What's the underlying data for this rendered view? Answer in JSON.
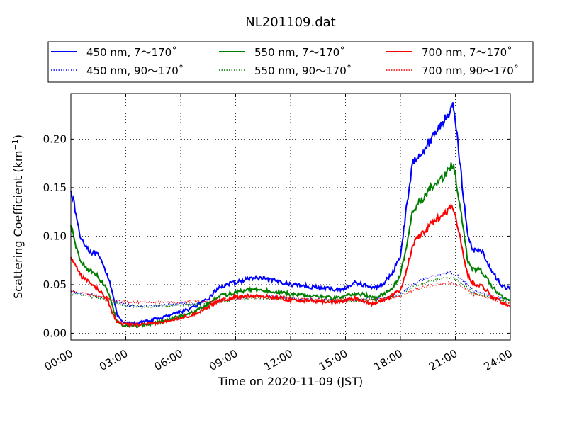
{
  "chart_data": {
    "type": "line",
    "title": "NL201109.dat",
    "xlabel": "Time on 2020-11-09 (JST)",
    "ylabel_main": "Scattering Coefficient (km",
    "ylabel_sup": "−1",
    "ylabel_end": ")",
    "xlim": [
      "00:00",
      "24:00"
    ],
    "ylim": [
      -0.007,
      0.247
    ],
    "x_ticks": [
      "00:00",
      "03:00",
      "06:00",
      "09:00",
      "12:00",
      "15:00",
      "18:00",
      "21:00",
      "24:00"
    ],
    "y_ticks": [
      "0.00",
      "0.05",
      "0.10",
      "0.15",
      "0.20"
    ],
    "y_tick_values": [
      0.0,
      0.05,
      0.1,
      0.15,
      0.2
    ],
    "grid": true,
    "legend_position": "top",
    "series": [
      {
        "name": "450 nm, 7～170˚",
        "color": "#0000ff",
        "style": "solid",
        "x": [
          "00:00",
          "00:30",
          "01:00",
          "01:30",
          "02:00",
          "02:15",
          "02:30",
          "02:45",
          "03:00",
          "03:30",
          "04:00",
          "04:30",
          "05:00",
          "05:30",
          "06:00",
          "06:30",
          "07:00",
          "07:30",
          "08:00",
          "08:30",
          "09:00",
          "09:30",
          "10:00",
          "10:30",
          "11:00",
          "11:30",
          "12:00",
          "12:30",
          "13:00",
          "13:30",
          "14:00",
          "14:30",
          "15:00",
          "15:30",
          "16:00",
          "16:30",
          "17:00",
          "17:30",
          "18:00",
          "18:20",
          "18:40",
          "19:00",
          "19:20",
          "19:40",
          "20:00",
          "20:20",
          "20:40",
          "20:50",
          "21:00",
          "21:20",
          "21:40",
          "22:00",
          "22:20",
          "22:40",
          "23:00",
          "23:30",
          "24:00"
        ],
        "y": [
          0.15,
          0.1,
          0.085,
          0.08,
          0.06,
          0.045,
          0.02,
          0.012,
          0.01,
          0.01,
          0.012,
          0.014,
          0.016,
          0.02,
          0.022,
          0.025,
          0.03,
          0.035,
          0.046,
          0.05,
          0.052,
          0.055,
          0.057,
          0.056,
          0.054,
          0.053,
          0.05,
          0.05,
          0.048,
          0.047,
          0.046,
          0.045,
          0.046,
          0.052,
          0.05,
          0.046,
          0.05,
          0.06,
          0.08,
          0.13,
          0.175,
          0.185,
          0.19,
          0.2,
          0.21,
          0.218,
          0.228,
          0.235,
          0.222,
          0.16,
          0.1,
          0.085,
          0.087,
          0.077,
          0.063,
          0.05,
          0.045
        ]
      },
      {
        "name": "450 nm, 90～170˚",
        "color": "#0000ff",
        "style": "dotted",
        "x": [
          "00:00",
          "01:00",
          "02:00",
          "02:30",
          "03:00",
          "04:00",
          "05:00",
          "06:00",
          "07:00",
          "08:00",
          "09:00",
          "10:00",
          "11:00",
          "12:00",
          "13:00",
          "14:00",
          "15:00",
          "16:00",
          "17:00",
          "18:00",
          "18:40",
          "19:20",
          "20:00",
          "20:40",
          "21:00",
          "21:40",
          "22:00",
          "22:40",
          "23:00",
          "24:00"
        ],
        "y": [
          0.043,
          0.04,
          0.036,
          0.032,
          0.029,
          0.028,
          0.029,
          0.03,
          0.031,
          0.033,
          0.036,
          0.038,
          0.038,
          0.036,
          0.035,
          0.034,
          0.034,
          0.035,
          0.036,
          0.04,
          0.05,
          0.056,
          0.06,
          0.063,
          0.061,
          0.05,
          0.044,
          0.04,
          0.038,
          0.033
        ]
      },
      {
        "name": "550 nm, 7～170˚",
        "color": "#008000",
        "style": "solid",
        "x": [
          "00:00",
          "00:30",
          "01:00",
          "01:30",
          "02:00",
          "02:15",
          "02:30",
          "02:45",
          "03:00",
          "03:30",
          "04:00",
          "04:30",
          "05:00",
          "05:30",
          "06:00",
          "06:30",
          "07:00",
          "07:30",
          "08:00",
          "08:30",
          "09:00",
          "09:30",
          "10:00",
          "10:30",
          "11:00",
          "11:30",
          "12:00",
          "12:30",
          "13:00",
          "13:30",
          "14:00",
          "14:30",
          "15:00",
          "15:30",
          "16:00",
          "16:30",
          "17:00",
          "17:30",
          "18:00",
          "18:20",
          "18:40",
          "19:00",
          "19:20",
          "19:40",
          "20:00",
          "20:20",
          "20:40",
          "20:50",
          "21:00",
          "21:20",
          "21:40",
          "22:00",
          "22:20",
          "22:40",
          "23:00",
          "23:30",
          "24:00"
        ],
        "y": [
          0.11,
          0.075,
          0.065,
          0.058,
          0.045,
          0.03,
          0.012,
          0.008,
          0.008,
          0.007,
          0.008,
          0.01,
          0.012,
          0.015,
          0.018,
          0.02,
          0.025,
          0.03,
          0.038,
          0.04,
          0.042,
          0.044,
          0.045,
          0.044,
          0.043,
          0.042,
          0.04,
          0.04,
          0.039,
          0.038,
          0.037,
          0.036,
          0.038,
          0.04,
          0.04,
          0.036,
          0.04,
          0.045,
          0.06,
          0.09,
          0.125,
          0.135,
          0.14,
          0.15,
          0.155,
          0.16,
          0.168,
          0.175,
          0.163,
          0.12,
          0.075,
          0.065,
          0.066,
          0.058,
          0.048,
          0.038,
          0.033
        ]
      },
      {
        "name": "550 nm, 90～170˚",
        "color": "#008000",
        "style": "dotted",
        "x": [
          "00:00",
          "01:00",
          "02:00",
          "02:30",
          "03:00",
          "04:00",
          "05:00",
          "06:00",
          "07:00",
          "08:00",
          "09:00",
          "10:00",
          "11:00",
          "12:00",
          "13:00",
          "14:00",
          "15:00",
          "16:00",
          "17:00",
          "18:00",
          "18:40",
          "19:20",
          "20:00",
          "20:40",
          "21:00",
          "21:40",
          "22:00",
          "22:40",
          "23:00",
          "24:00"
        ],
        "y": [
          0.041,
          0.038,
          0.035,
          0.031,
          0.028,
          0.027,
          0.028,
          0.029,
          0.03,
          0.032,
          0.035,
          0.036,
          0.036,
          0.035,
          0.034,
          0.033,
          0.033,
          0.034,
          0.035,
          0.039,
          0.047,
          0.052,
          0.055,
          0.057,
          0.056,
          0.047,
          0.041,
          0.038,
          0.036,
          0.031
        ]
      },
      {
        "name": "700 nm, 7～170˚",
        "color": "#ff0000",
        "style": "solid",
        "x": [
          "00:00",
          "00:30",
          "01:00",
          "01:30",
          "02:00",
          "02:15",
          "02:30",
          "02:45",
          "03:00",
          "03:30",
          "04:00",
          "04:30",
          "05:00",
          "05:30",
          "06:00",
          "06:30",
          "07:00",
          "07:30",
          "08:00",
          "08:30",
          "09:00",
          "09:30",
          "10:00",
          "10:30",
          "11:00",
          "11:30",
          "12:00",
          "12:30",
          "13:00",
          "13:30",
          "14:00",
          "14:30",
          "15:00",
          "15:30",
          "16:00",
          "16:30",
          "17:00",
          "17:30",
          "18:00",
          "18:20",
          "18:40",
          "19:00",
          "19:20",
          "19:40",
          "20:00",
          "20:20",
          "20:40",
          "20:50",
          "21:00",
          "21:20",
          "21:40",
          "22:00",
          "22:20",
          "22:40",
          "23:00",
          "23:30",
          "24:00"
        ],
        "y": [
          0.08,
          0.06,
          0.052,
          0.045,
          0.035,
          0.022,
          0.012,
          0.01,
          0.009,
          0.009,
          0.009,
          0.01,
          0.011,
          0.014,
          0.016,
          0.018,
          0.022,
          0.027,
          0.033,
          0.035,
          0.037,
          0.038,
          0.039,
          0.038,
          0.037,
          0.036,
          0.034,
          0.034,
          0.033,
          0.033,
          0.032,
          0.032,
          0.034,
          0.036,
          0.033,
          0.03,
          0.034,
          0.038,
          0.045,
          0.065,
          0.09,
          0.1,
          0.105,
          0.112,
          0.118,
          0.122,
          0.128,
          0.133,
          0.122,
          0.09,
          0.06,
          0.05,
          0.05,
          0.045,
          0.038,
          0.032,
          0.027
        ]
      },
      {
        "name": "700 nm, 90～170˚",
        "color": "#ff0000",
        "style": "dotted",
        "x": [
          "00:00",
          "01:00",
          "02:00",
          "02:30",
          "03:00",
          "04:00",
          "05:00",
          "06:00",
          "07:00",
          "08:00",
          "09:00",
          "10:00",
          "11:00",
          "12:00",
          "13:00",
          "14:00",
          "15:00",
          "16:00",
          "17:00",
          "18:00",
          "18:40",
          "19:20",
          "20:00",
          "20:40",
          "21:00",
          "21:40",
          "22:00",
          "22:40",
          "23:00",
          "24:00"
        ],
        "y": [
          0.044,
          0.04,
          0.036,
          0.033,
          0.032,
          0.032,
          0.032,
          0.032,
          0.033,
          0.034,
          0.036,
          0.037,
          0.037,
          0.036,
          0.035,
          0.034,
          0.034,
          0.034,
          0.035,
          0.038,
          0.044,
          0.048,
          0.05,
          0.052,
          0.051,
          0.044,
          0.04,
          0.037,
          0.035,
          0.03
        ]
      }
    ]
  }
}
